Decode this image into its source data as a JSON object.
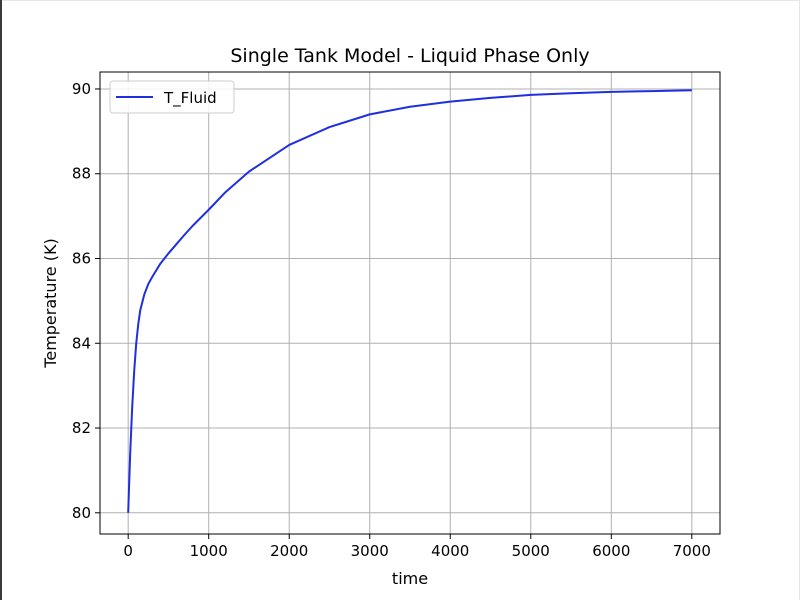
{
  "chart_data": {
    "type": "line",
    "title": "Single Tank Model - Liquid Phase Only",
    "xlabel": "time",
    "ylabel": "Temperature (K)",
    "xlim": [
      -350,
      7350
    ],
    "ylim": [
      79.5,
      90.4
    ],
    "xticks": [
      0,
      1000,
      2000,
      3000,
      4000,
      5000,
      6000,
      7000
    ],
    "yticks": [
      80,
      82,
      84,
      86,
      88,
      90
    ],
    "grid": true,
    "legend": "top-left",
    "series": [
      {
        "name": "T_Fluid",
        "color": "#1f2fe0",
        "x": [
          0,
          25,
          50,
          75,
          100,
          125,
          150,
          200,
          250,
          300,
          400,
          500,
          600,
          700,
          800,
          1000,
          1200,
          1500,
          2000,
          2500,
          3000,
          3500,
          4000,
          4500,
          5000,
          5500,
          6000,
          6500,
          7000
        ],
        "y": [
          80.0,
          81.4,
          82.5,
          83.35,
          84.0,
          84.45,
          84.78,
          85.15,
          85.4,
          85.57,
          85.88,
          86.12,
          86.34,
          86.56,
          86.77,
          87.15,
          87.55,
          88.05,
          88.68,
          89.1,
          89.4,
          89.58,
          89.7,
          89.79,
          89.86,
          89.9,
          89.93,
          89.95,
          89.97
        ]
      }
    ]
  }
}
